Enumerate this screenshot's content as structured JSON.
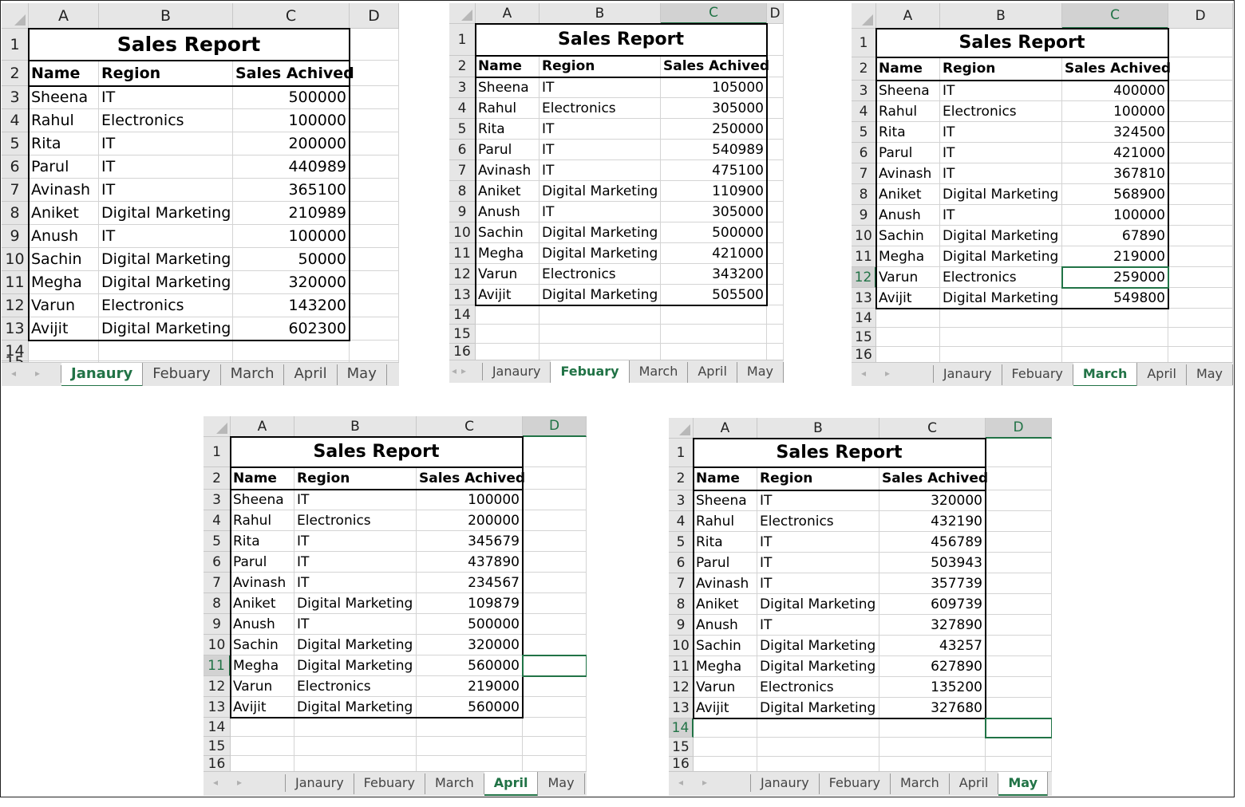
{
  "accent_color": "#217346",
  "column_letters": [
    "A",
    "B",
    "C",
    "D"
  ],
  "tabs": [
    "Janaury",
    "Febuary",
    "March",
    "April",
    "May"
  ],
  "nav_icons": [
    "chevron-left-icon",
    "chevron-right-icon"
  ],
  "sheets": [
    {
      "active_tab": "Janaury",
      "title": "Sales Report",
      "headers": [
        "Name",
        "Region",
        "Sales Achived"
      ],
      "rows": [
        [
          "Sheena",
          "IT",
          "500000"
        ],
        [
          "Rahul",
          "Electronics",
          "100000"
        ],
        [
          "Rita",
          "IT",
          "200000"
        ],
        [
          "Parul",
          "IT",
          "440989"
        ],
        [
          "Avinash",
          "IT",
          "365100"
        ],
        [
          "Aniket",
          "Digital Marketing",
          "210989"
        ],
        [
          "Anush",
          "IT",
          "100000"
        ],
        [
          "Sachin",
          "Digital Marketing",
          "50000"
        ],
        [
          "Megha",
          "Digital Marketing",
          "320000"
        ],
        [
          "Varun",
          "Electronics",
          "143200"
        ],
        [
          "Avijit",
          "Digital Marketing",
          "602300"
        ]
      ],
      "selected_cell": null
    },
    {
      "active_tab": "Febuary",
      "title": "Sales Report",
      "headers": [
        "Name",
        "Region",
        "Sales Achived"
      ],
      "rows": [
        [
          "Sheena",
          "IT",
          "105000"
        ],
        [
          "Rahul",
          "Electronics",
          "305000"
        ],
        [
          "Rita",
          "IT",
          "250000"
        ],
        [
          "Parul",
          "IT",
          "540989"
        ],
        [
          "Avinash",
          "IT",
          "475100"
        ],
        [
          "Aniket",
          "Digital Marketing",
          "110900"
        ],
        [
          "Anush",
          "IT",
          "305000"
        ],
        [
          "Sachin",
          "Digital Marketing",
          "500000"
        ],
        [
          "Megha",
          "Digital Marketing",
          "421000"
        ],
        [
          "Varun",
          "Electronics",
          "343200"
        ],
        [
          "Avijit",
          "Digital Marketing",
          "505500"
        ]
      ],
      "selected_cell": "C"
    },
    {
      "active_tab": "March",
      "title": "Sales Report",
      "headers": [
        "Name",
        "Region",
        "Sales Achived"
      ],
      "rows": [
        [
          "Sheena",
          "IT",
          "400000"
        ],
        [
          "Rahul",
          "Electronics",
          "100000"
        ],
        [
          "Rita",
          "IT",
          "324500"
        ],
        [
          "Parul",
          "IT",
          "421000"
        ],
        [
          "Avinash",
          "IT",
          "367810"
        ],
        [
          "Aniket",
          "Digital Marketing",
          "568900"
        ],
        [
          "Anush",
          "IT",
          "100000"
        ],
        [
          "Sachin",
          "Digital Marketing",
          "67890"
        ],
        [
          "Megha",
          "Digital Marketing",
          "219000"
        ],
        [
          "Varun",
          "Electronics",
          "259000"
        ],
        [
          "Avijit",
          "Digital Marketing",
          "549800"
        ]
      ],
      "selected_cell": "C12"
    },
    {
      "active_tab": "April",
      "title": "Sales Report",
      "headers": [
        "Name",
        "Region",
        "Sales Achived"
      ],
      "rows": [
        [
          "Sheena",
          "IT",
          "100000"
        ],
        [
          "Rahul",
          "Electronics",
          "200000"
        ],
        [
          "Rita",
          "IT",
          "345679"
        ],
        [
          "Parul",
          "IT",
          "437890"
        ],
        [
          "Avinash",
          "IT",
          "234567"
        ],
        [
          "Aniket",
          "Digital Marketing",
          "109879"
        ],
        [
          "Anush",
          "IT",
          "500000"
        ],
        [
          "Sachin",
          "Digital Marketing",
          "320000"
        ],
        [
          "Megha",
          "Digital Marketing",
          "560000"
        ],
        [
          "Varun",
          "Electronics",
          "219000"
        ],
        [
          "Avijit",
          "Digital Marketing",
          "560000"
        ]
      ],
      "selected_cell": "D11"
    },
    {
      "active_tab": "May",
      "title": "Sales Report",
      "headers": [
        "Name",
        "Region",
        "Sales Achived"
      ],
      "rows": [
        [
          "Sheena",
          "IT",
          "320000"
        ],
        [
          "Rahul",
          "Electronics",
          "432190"
        ],
        [
          "Rita",
          "IT",
          "456789"
        ],
        [
          "Parul",
          "IT",
          "503943"
        ],
        [
          "Avinash",
          "IT",
          "357739"
        ],
        [
          "Aniket",
          "Digital Marketing",
          "609739"
        ],
        [
          "Anush",
          "IT",
          "327890"
        ],
        [
          "Sachin",
          "Digital Marketing",
          "43257"
        ],
        [
          "Megha",
          "Digital Marketing",
          "627890"
        ],
        [
          "Varun",
          "Electronics",
          "135200"
        ],
        [
          "Avijit",
          "Digital Marketing",
          "327680"
        ]
      ],
      "selected_cell": "D14"
    }
  ]
}
